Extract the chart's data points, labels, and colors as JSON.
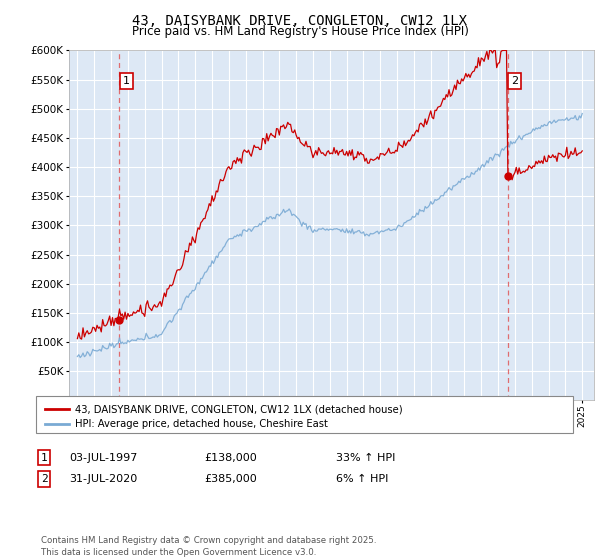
{
  "title": "43, DAISYBANK DRIVE, CONGLETON, CW12 1LX",
  "subtitle": "Price paid vs. HM Land Registry's House Price Index (HPI)",
  "legend_line1": "43, DAISYBANK DRIVE, CONGLETON, CW12 1LX (detached house)",
  "legend_line2": "HPI: Average price, detached house, Cheshire East",
  "annotation1_label": "1",
  "annotation1_date": "03-JUL-1997",
  "annotation1_price": "£138,000",
  "annotation1_hpi": "33% ↑ HPI",
  "annotation1_year": 1997.5,
  "annotation1_value": 138000,
  "annotation2_label": "2",
  "annotation2_date": "31-JUL-2020",
  "annotation2_price": "£385,000",
  "annotation2_hpi": "6% ↑ HPI",
  "annotation2_year": 2020.58,
  "annotation2_value": 385000,
  "footer": "Contains HM Land Registry data © Crown copyright and database right 2025.\nThis data is licensed under the Open Government Licence v3.0.",
  "y_min": 0,
  "y_max": 600000,
  "y_step": 50000,
  "x_min": 1994.5,
  "x_max": 2025.7,
  "bg_color": "#dde8f5",
  "grid_color": "#ffffff",
  "red_line_color": "#cc0000",
  "blue_line_color": "#7aaad4",
  "dashed_color": "#e06060"
}
